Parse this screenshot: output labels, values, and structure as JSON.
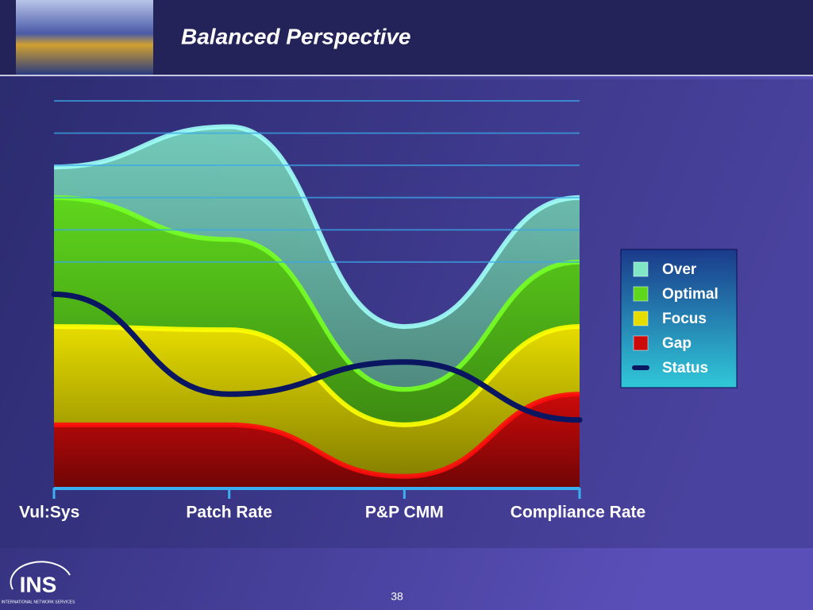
{
  "slide": {
    "title": "Balanced Perspective",
    "page_number": 38,
    "logo": "INS",
    "logo_subtitle": "INTERNATIONAL NETWORK SERVICES"
  },
  "chart_data": {
    "type": "area",
    "categories": [
      "Vul:Sys",
      "Patch Rate",
      "P&P CMM",
      "Compliance Rate"
    ],
    "series": [
      {
        "name": "Over",
        "color": "#7fe6c6",
        "values": [
          9.95,
          11.2,
          5.0,
          9.0
        ]
      },
      {
        "name": "Optimal",
        "color": "#5ed61c",
        "values": [
          9.0,
          7.7,
          3.05,
          7.0
        ]
      },
      {
        "name": "Focus",
        "color": "#e6dc00",
        "values": [
          5.0,
          4.9,
          1.95,
          5.0
        ]
      },
      {
        "name": "Gap",
        "color": "#cc0a0a",
        "values": [
          1.95,
          1.95,
          0.35,
          2.9
        ]
      },
      {
        "name": "Status",
        "color": "#0b1660",
        "values": [
          6.0,
          2.9,
          3.9,
          2.1
        ],
        "line": true
      }
    ],
    "ylim": [
      0,
      12
    ],
    "yticks": [
      7,
      8,
      9,
      10,
      11,
      12
    ],
    "grid": true,
    "legend": "right"
  }
}
